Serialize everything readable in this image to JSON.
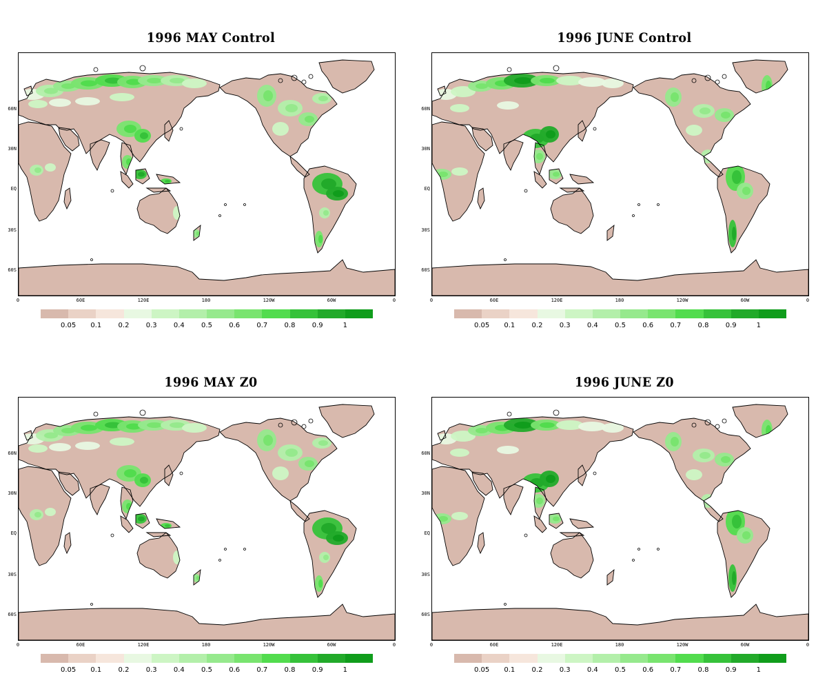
{
  "figure": {
    "panels": [
      {
        "id": "may-control",
        "title": "1996 MAY Control"
      },
      {
        "id": "june-control",
        "title": "1996 JUNE Control"
      },
      {
        "id": "may-z0",
        "title": "1996 MAY Z0"
      },
      {
        "id": "june-z0",
        "title": "1996 JUNE Z0"
      }
    ],
    "lat_ticks": [
      "60N",
      "30N",
      "EQ",
      "30S",
      "60S"
    ],
    "lon_ticks": [
      "0",
      "60E",
      "120E",
      "180",
      "120W",
      "60W",
      "0"
    ],
    "colorbar": {
      "colors": [
        "#d8b9ad",
        "#ead2c6",
        "#f6e6dc",
        "#e8f8e2",
        "#cdf5c4",
        "#b3efaa",
        "#96e98d",
        "#79e46f",
        "#52dc4e",
        "#36c23a",
        "#22aa2a",
        "#109d1c"
      ],
      "labels": [
        "0.05",
        "0.1",
        "0.2",
        "0.3",
        "0.4",
        "0.5",
        "0.6",
        "0.7",
        "0.8",
        "0.9",
        "1"
      ]
    },
    "map_colors": {
      "land_base": "#d8b9ad",
      "ocean": "#ffffff",
      "coast": "#000000"
    }
  }
}
